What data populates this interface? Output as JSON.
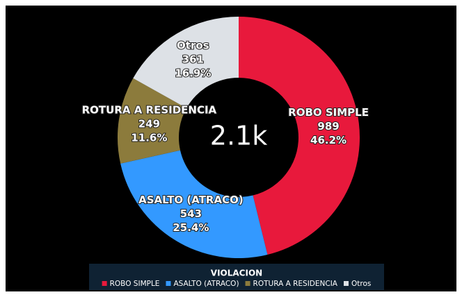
{
  "chart_data": {
    "type": "donut",
    "categories": [
      "ROBO SIMPLE",
      "ASALTO (ATRACO)",
      "ROTURA A RESIDENCIA",
      "Otros"
    ],
    "values": [
      989,
      543,
      249,
      361
    ],
    "value_labels": [
      "46.2%",
      "25.4%",
      "11.6%",
      "16.9%"
    ],
    "colors": [
      "#e8193c",
      "#3399ff",
      "#8c7b3c",
      "#dde1e6"
    ],
    "center_label": "2.1k",
    "legend_title": "VIOLACION",
    "legend": "bottom"
  }
}
